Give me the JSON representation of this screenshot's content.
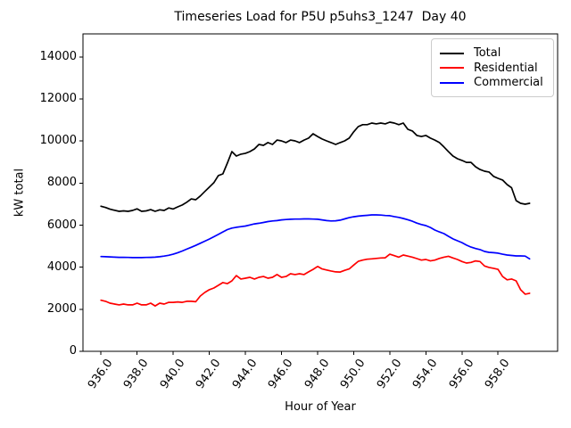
{
  "title": "Timeseries Load for P5U p5uhs3_1247  Day 40",
  "chart_data": {
    "type": "line",
    "title": "Timeseries Load for P5U p5uhs3_1247  Day 40",
    "xlabel": "Hour of Year",
    "ylabel": "kW total",
    "xlim": [
      935.0,
      961.3
    ],
    "ylim": [
      0,
      15100
    ],
    "grid": false,
    "legend_position": "upper right",
    "x_ticks": [
      936,
      938,
      940,
      942,
      944,
      946,
      948,
      950,
      952,
      954,
      956,
      958
    ],
    "x_tick_labels": [
      "936.0",
      "938.0",
      "940.0",
      "942.0",
      "944.0",
      "946.0",
      "948.0",
      "950.0",
      "952.0",
      "954.0",
      "956.0",
      "958.0"
    ],
    "y_ticks": [
      0,
      2000,
      4000,
      6000,
      8000,
      10000,
      12000,
      14000
    ],
    "x": [
      936,
      936.25,
      936.5,
      936.75,
      937,
      937.25,
      937.5,
      937.75,
      938,
      938.25,
      938.5,
      938.75,
      939,
      939.25,
      939.5,
      939.75,
      940,
      940.25,
      940.5,
      940.75,
      941,
      941.25,
      941.5,
      941.75,
      942,
      942.25,
      942.5,
      942.75,
      943,
      943.25,
      943.5,
      943.75,
      944,
      944.25,
      944.5,
      944.75,
      945,
      945.25,
      945.5,
      945.75,
      946,
      946.25,
      946.5,
      946.75,
      947,
      947.25,
      947.5,
      947.75,
      948,
      948.25,
      948.5,
      948.75,
      949,
      949.25,
      949.5,
      949.75,
      950,
      950.25,
      950.5,
      950.75,
      951,
      951.25,
      951.5,
      951.75,
      952,
      952.25,
      952.5,
      952.75,
      953,
      953.25,
      953.5,
      953.75,
      954,
      954.25,
      954.5,
      954.75,
      955,
      955.25,
      955.5,
      955.75,
      956,
      956.25,
      956.5,
      956.75,
      957,
      957.25,
      957.5,
      957.75,
      958,
      958.25,
      958.5,
      958.75,
      959,
      959.25,
      959.5,
      959.75
    ],
    "series": [
      {
        "name": "Total",
        "color": "#000000",
        "values": [
          6900,
          6840,
          6760,
          6710,
          6660,
          6680,
          6660,
          6700,
          6780,
          6660,
          6680,
          6740,
          6660,
          6730,
          6700,
          6820,
          6770,
          6870,
          6960,
          7090,
          7250,
          7210,
          7390,
          7600,
          7810,
          8020,
          8360,
          8440,
          8950,
          9500,
          9290,
          9380,
          9420,
          9500,
          9630,
          9840,
          9800,
          9930,
          9840,
          10050,
          10010,
          9930,
          10050,
          10010,
          9930,
          10050,
          10140,
          10350,
          10220,
          10100,
          10010,
          9930,
          9840,
          9930,
          10010,
          10140,
          10440,
          10690,
          10780,
          10780,
          10860,
          10820,
          10860,
          10820,
          10900,
          10860,
          10780,
          10860,
          10560,
          10480,
          10270,
          10220,
          10270,
          10140,
          10050,
          9930,
          9720,
          9500,
          9290,
          9160,
          9080,
          8990,
          8990,
          8780,
          8650,
          8570,
          8530,
          8320,
          8230,
          8150,
          7930,
          7780,
          7170,
          7040,
          7000,
          7040
        ]
      },
      {
        "name": "Residential",
        "color": "#ff0000",
        "values": [
          2430,
          2380,
          2290,
          2250,
          2210,
          2250,
          2210,
          2210,
          2290,
          2210,
          2210,
          2290,
          2160,
          2290,
          2250,
          2330,
          2330,
          2350,
          2330,
          2380,
          2380,
          2360,
          2630,
          2800,
          2930,
          3010,
          3140,
          3270,
          3220,
          3350,
          3600,
          3440,
          3480,
          3520,
          3440,
          3520,
          3560,
          3480,
          3520,
          3650,
          3520,
          3560,
          3690,
          3650,
          3690,
          3650,
          3780,
          3900,
          4040,
          3920,
          3870,
          3820,
          3780,
          3770,
          3850,
          3920,
          4100,
          4280,
          4340,
          4380,
          4400,
          4420,
          4440,
          4450,
          4620,
          4550,
          4480,
          4580,
          4530,
          4480,
          4410,
          4340,
          4370,
          4300,
          4340,
          4420,
          4480,
          4520,
          4440,
          4370,
          4270,
          4200,
          4230,
          4300,
          4270,
          4060,
          3990,
          3950,
          3900,
          3560,
          3400,
          3440,
          3350,
          2930,
          2720,
          2760
        ]
      },
      {
        "name": "Commercial",
        "color": "#0000ff",
        "values": [
          4510,
          4500,
          4490,
          4480,
          4470,
          4470,
          4465,
          4460,
          4460,
          4460,
          4465,
          4470,
          4480,
          4500,
          4530,
          4570,
          4620,
          4690,
          4770,
          4860,
          4950,
          5040,
          5140,
          5240,
          5340,
          5450,
          5560,
          5680,
          5790,
          5860,
          5900,
          5930,
          5960,
          6010,
          6060,
          6090,
          6130,
          6170,
          6200,
          6220,
          6250,
          6270,
          6280,
          6290,
          6290,
          6300,
          6300,
          6290,
          6280,
          6250,
          6220,
          6200,
          6210,
          6240,
          6300,
          6360,
          6400,
          6430,
          6450,
          6470,
          6490,
          6490,
          6480,
          6460,
          6450,
          6410,
          6370,
          6320,
          6260,
          6190,
          6100,
          6030,
          5980,
          5890,
          5770,
          5680,
          5600,
          5470,
          5350,
          5260,
          5170,
          5050,
          4960,
          4890,
          4840,
          4750,
          4710,
          4690,
          4670,
          4620,
          4580,
          4560,
          4540,
          4540,
          4530,
          4400
        ]
      }
    ]
  }
}
